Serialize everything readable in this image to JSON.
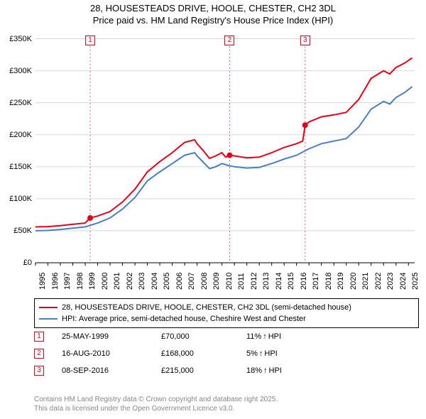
{
  "title": {
    "line1": "28, HOUSESTEADS DRIVE, HOOLE, CHESTER, CH2 3DL",
    "line2": "Price paid vs. HM Land Registry's House Price Index (HPI)"
  },
  "chart": {
    "type": "line",
    "background_color": "#ffffff",
    "grid_color": "#d8d8d8",
    "axis_color": "#000000",
    "x_range": [
      1995,
      2025.5
    ],
    "y_range": [
      0,
      355000
    ],
    "y_ticks": [
      0,
      50000,
      100000,
      150000,
      200000,
      250000,
      300000,
      350000
    ],
    "y_tick_labels": [
      "£0",
      "£50K",
      "£100K",
      "£150K",
      "£200K",
      "£250K",
      "£300K",
      "£350K"
    ],
    "x_ticks": [
      1995,
      1996,
      1997,
      1998,
      1999,
      2000,
      2001,
      2002,
      2003,
      2004,
      2005,
      2006,
      2007,
      2008,
      2009,
      2010,
      2011,
      2012,
      2013,
      2014,
      2015,
      2016,
      2017,
      2018,
      2019,
      2020,
      2021,
      2022,
      2023,
      2024,
      2025
    ],
    "series": [
      {
        "name": "price_paid",
        "color": "#e2001a",
        "width": 2,
        "points": [
          [
            1995,
            56000
          ],
          [
            1996,
            56500
          ],
          [
            1997,
            58000
          ],
          [
            1998,
            60000
          ],
          [
            1999,
            62000
          ],
          [
            1999.4,
            70000
          ],
          [
            2000,
            73000
          ],
          [
            2001,
            80000
          ],
          [
            2002,
            95000
          ],
          [
            2003,
            115000
          ],
          [
            2004,
            142000
          ],
          [
            2005,
            158000
          ],
          [
            2006,
            172000
          ],
          [
            2007,
            188000
          ],
          [
            2007.8,
            192000
          ],
          [
            2008,
            186000
          ],
          [
            2008.5,
            175000
          ],
          [
            2009,
            163000
          ],
          [
            2009.5,
            167000
          ],
          [
            2010,
            172000
          ],
          [
            2010.3,
            165000
          ],
          [
            2010.62,
            168000
          ],
          [
            2011,
            167000
          ],
          [
            2012,
            164000
          ],
          [
            2013,
            165000
          ],
          [
            2014,
            172000
          ],
          [
            2015,
            180000
          ],
          [
            2016,
            186000
          ],
          [
            2016.5,
            190000
          ],
          [
            2016.69,
            215000
          ],
          [
            2017,
            220000
          ],
          [
            2018,
            228000
          ],
          [
            2019,
            231000
          ],
          [
            2020,
            235000
          ],
          [
            2021,
            255000
          ],
          [
            2022,
            288000
          ],
          [
            2023,
            300000
          ],
          [
            2023.5,
            295000
          ],
          [
            2024,
            305000
          ],
          [
            2024.7,
            312000
          ],
          [
            2025.3,
            320000
          ]
        ]
      },
      {
        "name": "hpi",
        "color": "#4a7fc1",
        "width": 2,
        "points": [
          [
            1995,
            50000
          ],
          [
            1996,
            50500
          ],
          [
            1997,
            52000
          ],
          [
            1998,
            54000
          ],
          [
            1999,
            56000
          ],
          [
            2000,
            62000
          ],
          [
            2001,
            70000
          ],
          [
            2002,
            84000
          ],
          [
            2003,
            102000
          ],
          [
            2004,
            128000
          ],
          [
            2005,
            142000
          ],
          [
            2006,
            155000
          ],
          [
            2007,
            168000
          ],
          [
            2007.8,
            172000
          ],
          [
            2008,
            167000
          ],
          [
            2008.5,
            157000
          ],
          [
            2009,
            147000
          ],
          [
            2009.5,
            150000
          ],
          [
            2010,
            155000
          ],
          [
            2010.5,
            152000
          ],
          [
            2011,
            150000
          ],
          [
            2012,
            148000
          ],
          [
            2013,
            149000
          ],
          [
            2014,
            155000
          ],
          [
            2015,
            162000
          ],
          [
            2016,
            168000
          ],
          [
            2017,
            178000
          ],
          [
            2018,
            186000
          ],
          [
            2019,
            190000
          ],
          [
            2020,
            194000
          ],
          [
            2021,
            212000
          ],
          [
            2022,
            240000
          ],
          [
            2023,
            252000
          ],
          [
            2023.5,
            248000
          ],
          [
            2024,
            258000
          ],
          [
            2024.7,
            266000
          ],
          [
            2025.3,
            275000
          ]
        ]
      }
    ],
    "markers": [
      {
        "n": "1",
        "color": "#e2001a",
        "x": 1999.4,
        "y": 70000
      },
      {
        "n": "2",
        "color": "#e2001a",
        "x": 2010.62,
        "y": 168000
      },
      {
        "n": "3",
        "color": "#e2001a",
        "x": 2016.69,
        "y": 215000
      }
    ]
  },
  "legend": {
    "items": [
      {
        "color": "#e2001a",
        "label": "28, HOUSESTEADS DRIVE, HOOLE, CHESTER, CH2 3DL (semi-detached house)"
      },
      {
        "color": "#4a7fc1",
        "label": "HPI: Average price, semi-detached house, Cheshire West and Chester"
      }
    ]
  },
  "events": [
    {
      "n": "1",
      "color": "#e2001a",
      "date": "25-MAY-1999",
      "price": "£70,000",
      "diff": "11%",
      "arrow": "↑",
      "suffix": "HPI"
    },
    {
      "n": "2",
      "color": "#e2001a",
      "date": "16-AUG-2010",
      "price": "£168,000",
      "diff": "5%",
      "arrow": "↑",
      "suffix": "HPI"
    },
    {
      "n": "3",
      "color": "#e2001a",
      "date": "08-SEP-2016",
      "price": "£215,000",
      "diff": "18%",
      "arrow": "↑",
      "suffix": "HPI"
    }
  ],
  "footer": {
    "line1": "Contains HM Land Registry data © Crown copyright and database right 2025.",
    "line2": "This data is licensed under the Open Government Licence v3.0."
  }
}
